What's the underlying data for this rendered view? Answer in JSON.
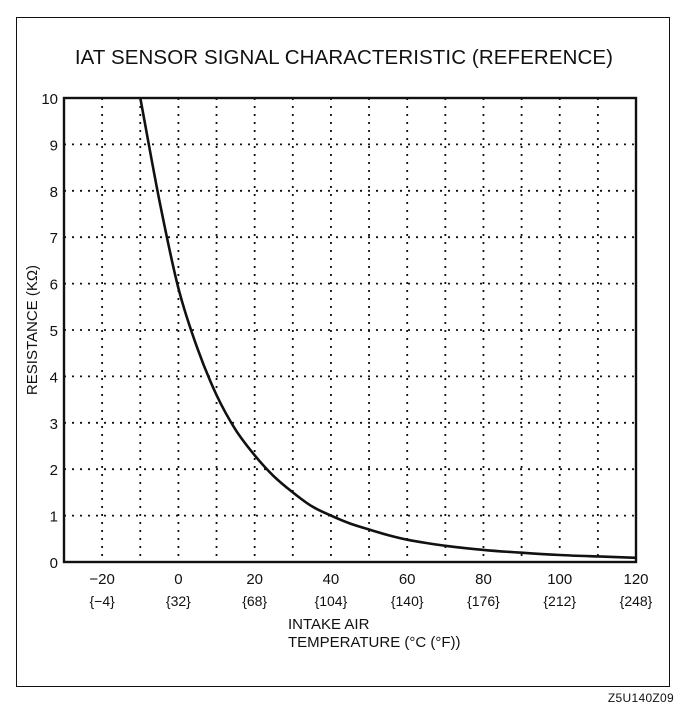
{
  "title": "IAT SENSOR SIGNAL CHARACTERISTIC (REFERENCE)",
  "caption": "Z5U140Z09",
  "chart_data": {
    "type": "line",
    "title": "IAT SENSOR SIGNAL CHARACTERISTIC (REFERENCE)",
    "ylabel": "RESISTANCE (KΩ)",
    "xlabel_line1": "INTAKE AIR",
    "xlabel_line2": "TEMPERATURE  (°C (°F))",
    "xlim": [
      -30,
      120
    ],
    "ylim": [
      0,
      10
    ],
    "grid": true,
    "x_ticks": [
      -20,
      0,
      20,
      40,
      60,
      80,
      100,
      120
    ],
    "x_tick_labels_c": [
      "−20",
      "0",
      "20",
      "40",
      "60",
      "80",
      "100",
      "120"
    ],
    "x_tick_labels_f": [
      "{−4}",
      "{32}",
      "{68}",
      "{104}",
      "{140}",
      "{176}",
      "{212}",
      "{248}"
    ],
    "y_ticks": [
      0,
      1,
      2,
      3,
      4,
      5,
      6,
      7,
      8,
      9,
      10
    ],
    "y_tick_labels": [
      "0",
      "1",
      "2",
      "3",
      "4",
      "5",
      "6",
      "7",
      "8",
      "9",
      "10"
    ],
    "series": [
      {
        "x": [
          -10,
          -5,
          0,
          5,
          10,
          15,
          20,
          25,
          30,
          35,
          40,
          45,
          50,
          55,
          60,
          65,
          70,
          80,
          90,
          100,
          110,
          120
        ],
        "y": [
          10.0,
          7.8,
          5.9,
          4.6,
          3.6,
          2.85,
          2.3,
          1.85,
          1.5,
          1.2,
          1.0,
          0.83,
          0.7,
          0.58,
          0.48,
          0.41,
          0.35,
          0.26,
          0.2,
          0.15,
          0.12,
          0.09
        ]
      }
    ]
  }
}
